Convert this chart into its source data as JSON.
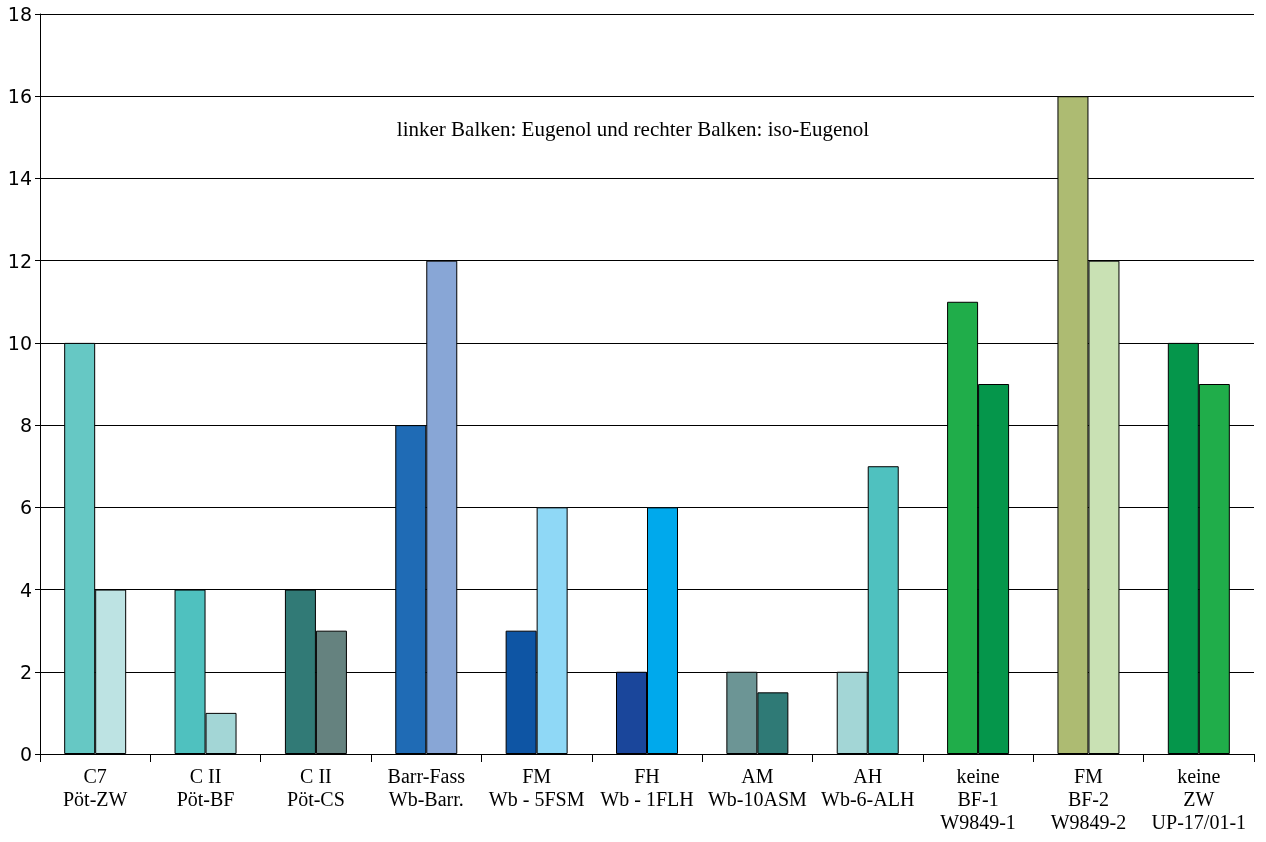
{
  "chart_data": {
    "type": "bar",
    "annotations": [
      "linker Balken: Eugenol und rechter Balken: iso-Eugenol"
    ],
    "categories": [
      "C7\nPöt-ZW",
      "C II\nPöt-BF",
      "C II\nPöt-CS",
      "Barr-Fass\nWb-Barr.",
      "FM\nWb - 5FSM",
      "FH\nWb - 1FLH",
      "AM\nWb-10ASM",
      "AH\nWb-6-ALH",
      "keine\nBF-1\nW9849-1",
      "FM\nBF-2\nW9849-2",
      "keine\nZW\nUP-17/01-1"
    ],
    "series": [
      {
        "values": [
          10,
          4,
          4,
          8,
          3,
          2,
          2,
          2,
          11,
          16,
          10
        ],
        "colors": [
          "#66c8c4",
          "#4fc1bf",
          "#317a76",
          "#1f6bb5",
          "#0e55a4",
          "#1a469b",
          "#6c9595",
          "#a3d6d6",
          "#20ad4a",
          "#adbb72",
          "#05964b"
        ]
      },
      {
        "values": [
          4,
          1,
          3,
          12,
          6,
          6,
          1.5,
          7,
          9,
          12,
          9
        ],
        "colors": [
          "#bde3e3",
          "#a3d6d6",
          "#65827f",
          "#88a6d6",
          "#8fd8f6",
          "#00a9ec",
          "#2f7a76",
          "#4fc1bf",
          "#05964b",
          "#c9e1b4",
          "#20ad4a"
        ]
      }
    ],
    "ylim": [
      0,
      18
    ],
    "yticks": [
      0,
      2,
      4,
      6,
      8,
      10,
      12,
      14,
      16,
      18
    ],
    "grid": "y"
  }
}
